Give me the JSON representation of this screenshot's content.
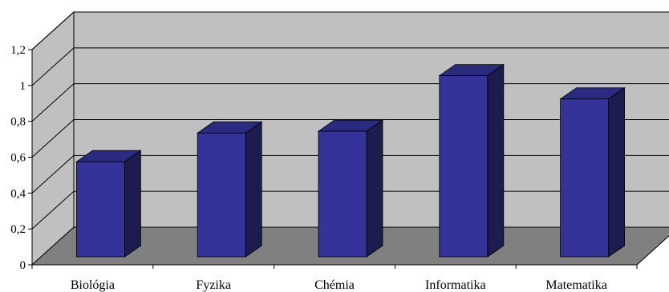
{
  "chart_data": {
    "type": "bar",
    "categories": [
      "Biológia",
      "Fyzika",
      "Chémia",
      "Informatika",
      "Matematika"
    ],
    "values": [
      0.53,
      0.69,
      0.7,
      1.01,
      0.88
    ],
    "y_tick_labels": [
      "0",
      "0,2",
      "0,4",
      "0,6",
      "0,8",
      "1",
      "1,2"
    ],
    "ylim": [
      0,
      1.2
    ],
    "grid": true,
    "legend": "none",
    "three_d": true,
    "colors": {
      "bar_front": "#333399",
      "bar_top": "#2a2a80",
      "bar_side": "#1c1c4e",
      "back_wall": "#c0c0c0",
      "side_wall": "#c0c0c0",
      "floor": "#808080",
      "grid": "#000000"
    }
  }
}
